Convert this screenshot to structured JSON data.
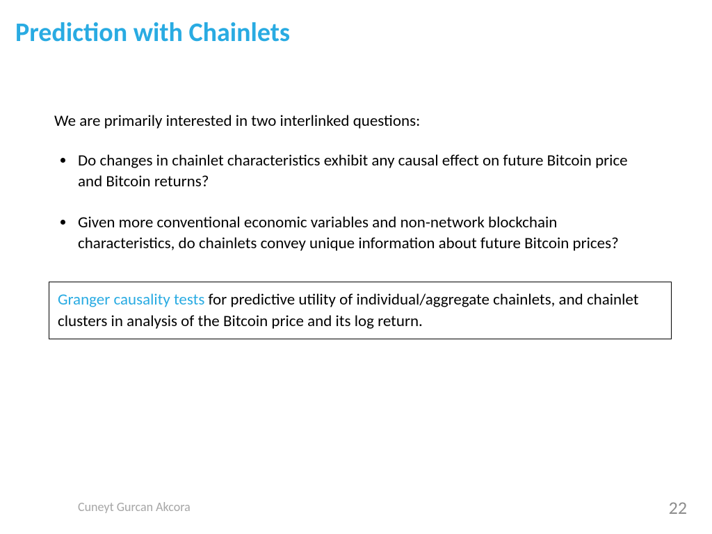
{
  "colors": {
    "accent": "#29abe2",
    "text": "#000000",
    "muted": "#a6a6a6",
    "pagenum": "#8c8c8c",
    "background": "#ffffff",
    "box_border": "#000000"
  },
  "slide": {
    "title": "Prediction with Chainlets",
    "intro": "We are primarily interested in two interlinked questions:",
    "bullets": [
      "Do changes in chainlet characteristics exhibit any causal effect on future Bitcoin price and Bitcoin returns?",
      "Given more conventional economic variables and non-network blockchain characteristics, do chainlets convey unique information about future Bitcoin prices?"
    ],
    "box": {
      "highlight": "Granger causality tests",
      "rest": " for predictive utility of individual/aggregate chainlets, and chainlet clusters in analysis of the Bitcoin price and its log return."
    }
  },
  "footer": {
    "author": "Cuneyt Gurcan Akcora",
    "page": "22"
  }
}
